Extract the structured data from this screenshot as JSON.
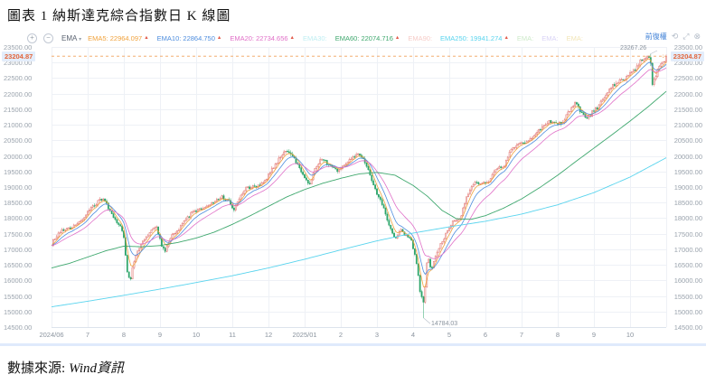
{
  "page": {
    "title": "圖表 1 納斯達克綜合指數日 K 線圖",
    "source_label": "數據來源:",
    "source_value": "Wind資訊"
  },
  "toolbar": {
    "icons": {
      "zoom_in": "+",
      "zoom_out": "−",
      "caret": "▾",
      "refresh": "⟲",
      "expand": "⤢",
      "close": "⊗"
    },
    "ma_selector": "EMA",
    "adjust_mode": "前復權",
    "legend": [
      {
        "label": "EMA5:",
        "value": "22964.097",
        "color": "#f0a23c",
        "arrow": "▲"
      },
      {
        "label": "EMA10:",
        "value": "22864.750",
        "color": "#4f8ede",
        "arrow": "▲"
      },
      {
        "label": "EMA20:",
        "value": "22734.656",
        "color": "#e070c8",
        "arrow": "▲"
      },
      {
        "label": "EMA30:",
        "value": "",
        "color": "#bfeef2",
        "arrow": ""
      },
      {
        "label": "EMA60:",
        "value": "22074.716",
        "color": "#3fa86e",
        "arrow": "▲"
      },
      {
        "label": "EMA90:",
        "value": "",
        "color": "#f6cdc9",
        "arrow": ""
      },
      {
        "label": "EMA250:",
        "value": "19941.274",
        "color": "#59d4ee",
        "arrow": "▲"
      },
      {
        "label": "EMA:",
        "value": "",
        "color": "#cdeac9",
        "arrow": ""
      },
      {
        "label": "EMA:",
        "value": "",
        "color": "#d9d3f6",
        "arrow": ""
      },
      {
        "label": "EMA:",
        "value": "",
        "color": "#f2e6b8",
        "arrow": ""
      }
    ]
  },
  "chart_data": {
    "type": "candlestick",
    "title": "納斯達克綜合指數日K線",
    "x_axis": {
      "labels": [
        "2024/06",
        "7",
        "8",
        "9",
        "10",
        "11",
        "12",
        "2025/01",
        "2",
        "3",
        "4",
        "5",
        "6",
        "7",
        "8",
        "9",
        "10"
      ]
    },
    "y_axis": {
      "min": 14500,
      "max": 23500,
      "step": 500
    },
    "last_price": 23204.87,
    "last_price_label": "23204.87",
    "high_annotation": {
      "t": 16.55,
      "price": 23267.26,
      "label": "23267.26"
    },
    "low_annotation": {
      "t": 10.3,
      "price": 14784.03,
      "label": "14784.03"
    },
    "close_path": [
      [
        0,
        17180
      ],
      [
        0.25,
        17600
      ],
      [
        0.5,
        17690
      ],
      [
        0.8,
        17860
      ],
      [
        1.0,
        18230
      ],
      [
        1.2,
        18430
      ],
      [
        1.35,
        18650
      ],
      [
        1.5,
        18500
      ],
      [
        1.7,
        18000
      ],
      [
        1.9,
        17750
      ],
      [
        2.0,
        17350
      ],
      [
        2.1,
        16200
      ],
      [
        2.18,
        16050
      ],
      [
        2.3,
        16700
      ],
      [
        2.5,
        17190
      ],
      [
        2.7,
        17520
      ],
      [
        2.9,
        17710
      ],
      [
        3.05,
        17100
      ],
      [
        3.15,
        16960
      ],
      [
        3.3,
        17450
      ],
      [
        3.5,
        17600
      ],
      [
        3.7,
        17950
      ],
      [
        3.9,
        18190
      ],
      [
        4.1,
        18280
      ],
      [
        4.3,
        18350
      ],
      [
        4.5,
        18520
      ],
      [
        4.7,
        18680
      ],
      [
        4.9,
        18520
      ],
      [
        5.05,
        18250
      ],
      [
        5.2,
        18650
      ],
      [
        5.4,
        19000
      ],
      [
        5.6,
        18980
      ],
      [
        5.8,
        19050
      ],
      [
        6.0,
        19400
      ],
      [
        6.2,
        19750
      ],
      [
        6.45,
        20170
      ],
      [
        6.6,
        20100
      ],
      [
        6.8,
        19750
      ],
      [
        7.0,
        19300
      ],
      [
        7.15,
        19090
      ],
      [
        7.3,
        19630
      ],
      [
        7.5,
        19950
      ],
      [
        7.7,
        19650
      ],
      [
        7.9,
        19520
      ],
      [
        8.1,
        19700
      ],
      [
        8.3,
        19940
      ],
      [
        8.5,
        20060
      ],
      [
        8.65,
        19850
      ],
      [
        8.8,
        19400
      ],
      [
        9.0,
        18800
      ],
      [
        9.2,
        18300
      ],
      [
        9.35,
        17700
      ],
      [
        9.5,
        17300
      ],
      [
        9.65,
        17600
      ],
      [
        9.8,
        17450
      ],
      [
        9.95,
        17300
      ],
      [
        10.1,
        16550
      ],
      [
        10.2,
        15600
      ],
      [
        10.3,
        15270
      ],
      [
        10.4,
        16830
      ],
      [
        10.5,
        16300
      ],
      [
        10.6,
        16710
      ],
      [
        10.75,
        17170
      ],
      [
        10.9,
        17450
      ],
      [
        11.1,
        17930
      ],
      [
        11.3,
        18000
      ],
      [
        11.5,
        18700
      ],
      [
        11.7,
        19150
      ],
      [
        11.9,
        19110
      ],
      [
        12.1,
        19210
      ],
      [
        12.3,
        19550
      ],
      [
        12.5,
        19630
      ],
      [
        12.7,
        20170
      ],
      [
        12.9,
        20370
      ],
      [
        13.1,
        20420
      ],
      [
        13.3,
        20580
      ],
      [
        13.5,
        20870
      ],
      [
        13.7,
        21060
      ],
      [
        13.9,
        21120
      ],
      [
        14.1,
        21000
      ],
      [
        14.3,
        21450
      ],
      [
        14.5,
        21680
      ],
      [
        14.65,
        21420
      ],
      [
        14.8,
        21170
      ],
      [
        15.0,
        21450
      ],
      [
        15.2,
        21700
      ],
      [
        15.4,
        22140
      ],
      [
        15.6,
        22260
      ],
      [
        15.8,
        22480
      ],
      [
        16.0,
        22660
      ],
      [
        16.15,
        22780
      ],
      [
        16.3,
        23040
      ],
      [
        16.45,
        23200
      ],
      [
        16.55,
        23240
      ],
      [
        16.62,
        22250
      ],
      [
        16.72,
        22660
      ],
      [
        16.85,
        22940
      ],
      [
        16.95,
        23050
      ],
      [
        17,
        23204.87
      ]
    ],
    "ema_overlays": [
      {
        "name": "EMA5",
        "period": 5,
        "color": "#f0a23c"
      },
      {
        "name": "EMA10",
        "period": 10,
        "color": "#4f8ede"
      },
      {
        "name": "EMA20",
        "period": 20,
        "color": "#e070c8"
      }
    ],
    "ema_lines": [
      {
        "name": "EMA60",
        "color": "#3fa86e",
        "anchors": [
          [
            0,
            16400
          ],
          [
            0.5,
            16550
          ],
          [
            1,
            16750
          ],
          [
            1.5,
            16950
          ],
          [
            2,
            17100
          ],
          [
            2.5,
            17080
          ],
          [
            3,
            17120
          ],
          [
            3.5,
            17220
          ],
          [
            4,
            17360
          ],
          [
            4.5,
            17550
          ],
          [
            5,
            17800
          ],
          [
            5.5,
            18080
          ],
          [
            6,
            18380
          ],
          [
            6.5,
            18680
          ],
          [
            7,
            18920
          ],
          [
            7.5,
            19120
          ],
          [
            8,
            19280
          ],
          [
            8.5,
            19420
          ],
          [
            9,
            19470
          ],
          [
            9.5,
            19380
          ],
          [
            10,
            19050
          ],
          [
            10.4,
            18700
          ],
          [
            10.8,
            18250
          ],
          [
            11.2,
            17980
          ],
          [
            11.6,
            17960
          ],
          [
            12,
            18080
          ],
          [
            12.5,
            18320
          ],
          [
            13,
            18620
          ],
          [
            13.5,
            18980
          ],
          [
            14,
            19380
          ],
          [
            14.5,
            19820
          ],
          [
            15,
            20250
          ],
          [
            15.5,
            20680
          ],
          [
            16,
            21120
          ],
          [
            16.5,
            21580
          ],
          [
            17,
            22074.72
          ]
        ]
      },
      {
        "name": "EMA250",
        "color": "#59d4ee",
        "anchors": [
          [
            0,
            15150
          ],
          [
            1,
            15330
          ],
          [
            2,
            15520
          ],
          [
            3,
            15720
          ],
          [
            4,
            15930
          ],
          [
            5,
            16150
          ],
          [
            6,
            16400
          ],
          [
            7,
            16680
          ],
          [
            8,
            16980
          ],
          [
            9,
            17270
          ],
          [
            10,
            17520
          ],
          [
            11,
            17720
          ],
          [
            12,
            17900
          ],
          [
            13,
            18130
          ],
          [
            14,
            18430
          ],
          [
            15,
            18820
          ],
          [
            16,
            19320
          ],
          [
            17,
            19941.27
          ]
        ]
      }
    ],
    "colors": {
      "up": "#e0706c",
      "up_fill": "#fbecea",
      "down": "#2ca56a",
      "grid": "#eef1f6",
      "axis_line": "#dde3ec",
      "axis_text": "#9aa3ad",
      "dashed_line": "#f0a05a",
      "price_tag_bg": "#e3edfb",
      "price_tag_text": "#e2663c"
    }
  }
}
